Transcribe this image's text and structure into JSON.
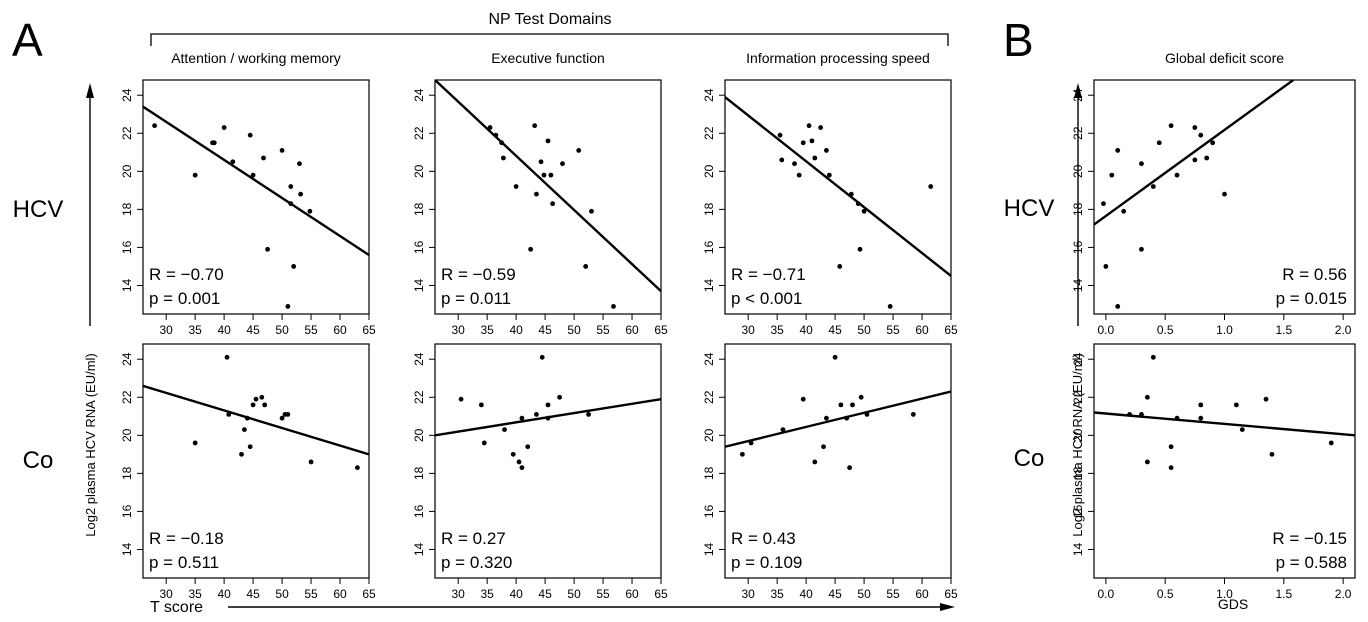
{
  "figure": {
    "panel_a_letter": "A",
    "panel_b_letter": "B",
    "domains_title": "NP Test Domains",
    "group_labels": [
      "HCV",
      "Co"
    ],
    "ylabel": "Log2 plasma HCV RNA (EU/ml)",
    "xlabel_a": "T score",
    "xlabel_b": "GDS"
  },
  "chart_data": [
    {
      "type": "scatter",
      "panel": "A",
      "group": "HCV",
      "title": "Attention / working memory",
      "xlim": [
        26,
        65
      ],
      "ylim": [
        12.5,
        24.8
      ],
      "x_ticks": [
        "30",
        "35",
        "40",
        "45",
        "50",
        "55",
        "60",
        "65"
      ],
      "y_ticks": [
        "14",
        "16",
        "18",
        "20",
        "22",
        "24"
      ],
      "points": [
        [
          28,
          22.4
        ],
        [
          35,
          19.8
        ],
        [
          38,
          21.5
        ],
        [
          38.3,
          21.5
        ],
        [
          40,
          22.3
        ],
        [
          41.5,
          20.5
        ],
        [
          44.5,
          21.9
        ],
        [
          45,
          19.8
        ],
        [
          46.8,
          20.7
        ],
        [
          47.5,
          15.9
        ],
        [
          50,
          21.1
        ],
        [
          51,
          12.9
        ],
        [
          51.5,
          19.2
        ],
        [
          51.5,
          18.3
        ],
        [
          52,
          15
        ],
        [
          53,
          20.4
        ],
        [
          53.2,
          18.8
        ],
        [
          54.8,
          17.9
        ]
      ],
      "fit": [
        [
          26,
          23.4
        ],
        [
          65,
          15.6
        ]
      ],
      "r": "R = −0.70",
      "p": "p = 0.001",
      "stats_position": "bottom-left"
    },
    {
      "type": "scatter",
      "panel": "A",
      "group": "HCV",
      "title": "Executive function",
      "xlim": [
        26,
        65
      ],
      "ylim": [
        12.5,
        24.8
      ],
      "x_ticks": [
        "30",
        "35",
        "40",
        "45",
        "50",
        "55",
        "60",
        "65"
      ],
      "y_ticks": [
        "14",
        "16",
        "18",
        "20",
        "22",
        "24"
      ],
      "points": [
        [
          35.5,
          22.3
        ],
        [
          36.5,
          21.9
        ],
        [
          37.5,
          21.5
        ],
        [
          37.8,
          20.7
        ],
        [
          40,
          19.2
        ],
        [
          42.5,
          15.9
        ],
        [
          43.2,
          22.4
        ],
        [
          43.5,
          18.8
        ],
        [
          44.3,
          20.5
        ],
        [
          44.8,
          19.8
        ],
        [
          45.5,
          21.6
        ],
        [
          46,
          19.8
        ],
        [
          46.3,
          18.3
        ],
        [
          48,
          20.4
        ],
        [
          50.8,
          21.1
        ],
        [
          52,
          15
        ],
        [
          53,
          17.9
        ],
        [
          56.8,
          12.9
        ]
      ],
      "fit": [
        [
          26,
          24.8
        ],
        [
          65,
          13.7
        ]
      ],
      "r": "R = −0.59",
      "p": "p = 0.011",
      "stats_position": "bottom-left"
    },
    {
      "type": "scatter",
      "panel": "A",
      "group": "HCV",
      "title": "Information processing speed",
      "xlim": [
        26,
        65
      ],
      "ylim": [
        12.5,
        24.8
      ],
      "x_ticks": [
        "30",
        "35",
        "40",
        "45",
        "50",
        "55",
        "60",
        "65"
      ],
      "y_ticks": [
        "14",
        "16",
        "18",
        "20",
        "22",
        "24"
      ],
      "points": [
        [
          35.5,
          21.9
        ],
        [
          35.8,
          20.6
        ],
        [
          38,
          20.4
        ],
        [
          38.8,
          19.8
        ],
        [
          39.5,
          21.5
        ],
        [
          40.5,
          22.4
        ],
        [
          41,
          21.6
        ],
        [
          41.5,
          20.7
        ],
        [
          42.5,
          22.3
        ],
        [
          43.5,
          21.1
        ],
        [
          44,
          19.8
        ],
        [
          45.8,
          15
        ],
        [
          47.8,
          18.8
        ],
        [
          49,
          18.3
        ],
        [
          49.3,
          15.9
        ],
        [
          50,
          17.9
        ],
        [
          54.5,
          12.9
        ],
        [
          61.5,
          19.2
        ]
      ],
      "fit": [
        [
          26,
          23.9
        ],
        [
          65,
          14.5
        ]
      ],
      "r": "R = −0.71",
      "p": "p < 0.001",
      "stats_position": "bottom-left"
    },
    {
      "type": "scatter",
      "panel": "B",
      "group": "HCV",
      "title": "Global deficit score",
      "xlim": [
        -0.1,
        2.1
      ],
      "ylim": [
        12.5,
        24.8
      ],
      "x_ticks": [
        "0.0",
        "0.5",
        "1.0",
        "1.5",
        "2.0"
      ],
      "y_ticks": [
        "14",
        "16",
        "18",
        "20",
        "22",
        "24"
      ],
      "points": [
        [
          -0.02,
          18.3
        ],
        [
          0,
          15
        ],
        [
          0.05,
          19.8
        ],
        [
          0.1,
          12.9
        ],
        [
          0.1,
          21.1
        ],
        [
          0.15,
          17.9
        ],
        [
          0.3,
          20.4
        ],
        [
          0.3,
          15.9
        ],
        [
          0.4,
          19.2
        ],
        [
          0.45,
          21.5
        ],
        [
          0.55,
          22.4
        ],
        [
          0.6,
          19.8
        ],
        [
          0.75,
          20.6
        ],
        [
          0.75,
          22.3
        ],
        [
          0.8,
          21.9
        ],
        [
          0.85,
          20.7
        ],
        [
          0.9,
          21.5
        ],
        [
          1.0,
          18.8
        ]
      ],
      "fit": [
        [
          -0.1,
          17.2
        ],
        [
          1.58,
          24.8
        ]
      ],
      "r": "R = 0.56",
      "p": "p = 0.015",
      "stats_position": "bottom-right"
    },
    {
      "type": "scatter",
      "panel": "A",
      "group": "Co",
      "title": "",
      "xlim": [
        26,
        65
      ],
      "ylim": [
        12.5,
        24.8
      ],
      "x_ticks": [
        "30",
        "35",
        "40",
        "45",
        "50",
        "55",
        "60",
        "65"
      ],
      "y_ticks": [
        "14",
        "16",
        "18",
        "20",
        "22",
        "24"
      ],
      "points": [
        [
          35,
          19.6
        ],
        [
          40.5,
          24.1
        ],
        [
          40.8,
          21.1
        ],
        [
          43,
          19
        ],
        [
          43.5,
          20.3
        ],
        [
          44,
          20.9
        ],
        [
          44.5,
          19.4
        ],
        [
          45,
          21.6
        ],
        [
          45.5,
          21.9
        ],
        [
          46.5,
          22
        ],
        [
          47,
          21.6
        ],
        [
          50,
          20.9
        ],
        [
          50.5,
          21.1
        ],
        [
          51,
          21.1
        ],
        [
          55,
          18.6
        ],
        [
          63,
          18.3
        ]
      ],
      "fit": [
        [
          26,
          22.6
        ],
        [
          65,
          19
        ]
      ],
      "r": "R = −0.18",
      "p": "p = 0.511",
      "stats_position": "bottom-left"
    },
    {
      "type": "scatter",
      "panel": "A",
      "group": "Co",
      "title": "",
      "xlim": [
        26,
        65
      ],
      "ylim": [
        12.5,
        24.8
      ],
      "x_ticks": [
        "30",
        "35",
        "40",
        "45",
        "50",
        "55",
        "60",
        "65"
      ],
      "y_ticks": [
        "14",
        "16",
        "18",
        "20",
        "22",
        "24"
      ],
      "points": [
        [
          30.5,
          21.9
        ],
        [
          34,
          21.6
        ],
        [
          34.5,
          19.6
        ],
        [
          38,
          20.3
        ],
        [
          39.5,
          19
        ],
        [
          40.5,
          18.6
        ],
        [
          41,
          18.3
        ],
        [
          41,
          20.9
        ],
        [
          42,
          19.4
        ],
        [
          43.5,
          21.1
        ],
        [
          44.5,
          24.1
        ],
        [
          45.5,
          20.9
        ],
        [
          45.5,
          21.6
        ],
        [
          47.5,
          22
        ],
        [
          52.5,
          21.1
        ]
      ],
      "fit": [
        [
          26,
          20
        ],
        [
          65,
          21.9
        ]
      ],
      "r": "R = 0.27",
      "p": "p = 0.320",
      "stats_position": "bottom-left"
    },
    {
      "type": "scatter",
      "panel": "A",
      "group": "Co",
      "title": "",
      "xlim": [
        26,
        65
      ],
      "ylim": [
        12.5,
        24.8
      ],
      "x_ticks": [
        "30",
        "35",
        "40",
        "45",
        "50",
        "55",
        "60",
        "65"
      ],
      "y_ticks": [
        "14",
        "16",
        "18",
        "20",
        "22",
        "24"
      ],
      "points": [
        [
          29,
          19
        ],
        [
          30.5,
          19.6
        ],
        [
          36,
          20.3
        ],
        [
          39.5,
          21.9
        ],
        [
          41.5,
          18.6
        ],
        [
          43,
          19.4
        ],
        [
          43.5,
          20.9
        ],
        [
          45,
          24.1
        ],
        [
          46,
          21.6
        ],
        [
          47,
          20.9
        ],
        [
          47.5,
          18.3
        ],
        [
          48,
          21.6
        ],
        [
          49.5,
          22
        ],
        [
          50.5,
          21.1
        ],
        [
          58.5,
          21.1
        ]
      ],
      "fit": [
        [
          26,
          19.4
        ],
        [
          65,
          22.3
        ]
      ],
      "r": "R = 0.43",
      "p": "p = 0.109",
      "stats_position": "bottom-left"
    },
    {
      "type": "scatter",
      "panel": "B",
      "group": "Co",
      "title": "",
      "xlim": [
        -0.1,
        2.1
      ],
      "ylim": [
        12.5,
        24.8
      ],
      "x_ticks": [
        "0.0",
        "0.5",
        "1.0",
        "1.5",
        "2.0"
      ],
      "y_ticks": [
        "14",
        "16",
        "18",
        "20",
        "22",
        "24"
      ],
      "points": [
        [
          0.2,
          21.1
        ],
        [
          0.3,
          21.1
        ],
        [
          0.35,
          22
        ],
        [
          0.35,
          18.6
        ],
        [
          0.4,
          24.1
        ],
        [
          0.55,
          19.4
        ],
        [
          0.55,
          18.3
        ],
        [
          0.6,
          20.9
        ],
        [
          0.8,
          21.6
        ],
        [
          0.8,
          20.9
        ],
        [
          1.1,
          21.6
        ],
        [
          1.15,
          20.3
        ],
        [
          1.35,
          21.9
        ],
        [
          1.4,
          19
        ],
        [
          1.9,
          19.6
        ]
      ],
      "fit": [
        [
          -0.1,
          21.2
        ],
        [
          2.1,
          20
        ]
      ],
      "r": "R = −0.15",
      "p": "p = 0.588",
      "stats_position": "bottom-right"
    }
  ]
}
